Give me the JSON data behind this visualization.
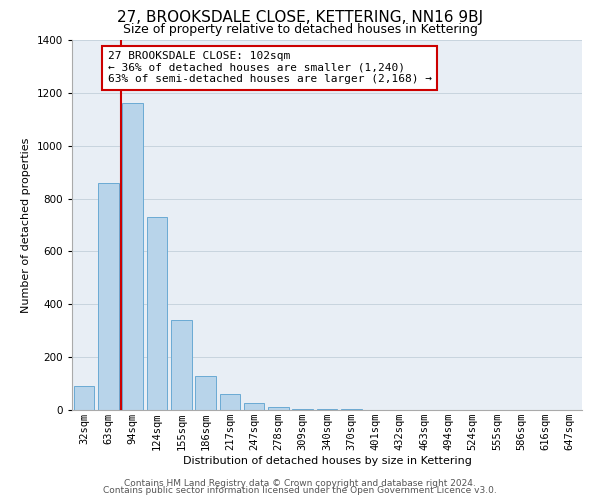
{
  "title": "27, BROOKSDALE CLOSE, KETTERING, NN16 9BJ",
  "subtitle": "Size of property relative to detached houses in Kettering",
  "xlabel": "Distribution of detached houses by size in Kettering",
  "ylabel": "Number of detached properties",
  "bar_color": "#b8d4ea",
  "bar_edge_color": "#6aaad4",
  "background_color": "#e8eef5",
  "categories": [
    "32sqm",
    "63sqm",
    "94sqm",
    "124sqm",
    "155sqm",
    "186sqm",
    "217sqm",
    "247sqm",
    "278sqm",
    "309sqm",
    "340sqm",
    "370sqm",
    "401sqm",
    "432sqm",
    "463sqm",
    "494sqm",
    "524sqm",
    "555sqm",
    "586sqm",
    "616sqm",
    "647sqm"
  ],
  "values": [
    90,
    860,
    1160,
    730,
    340,
    130,
    60,
    25,
    10,
    5,
    3,
    2,
    1,
    1,
    0,
    0,
    0,
    0,
    0,
    0,
    0
  ],
  "ylim": [
    0,
    1400
  ],
  "yticks": [
    0,
    200,
    400,
    600,
    800,
    1000,
    1200,
    1400
  ],
  "vline_pos": 1.5,
  "vline_color": "#cc0000",
  "annotation_box_edge": "#cc0000",
  "annotation_line1": "27 BROOKSDALE CLOSE: 102sqm",
  "annotation_line2": "← 36% of detached houses are smaller (1,240)",
  "annotation_line3": "63% of semi-detached houses are larger (2,168) →",
  "footer1": "Contains HM Land Registry data © Crown copyright and database right 2024.",
  "footer2": "Contains public sector information licensed under the Open Government Licence v3.0.",
  "grid_color": "#c8d4de",
  "title_fontsize": 11,
  "subtitle_fontsize": 9,
  "axis_label_fontsize": 8,
  "tick_fontsize": 7.5,
  "annotation_fontsize": 8,
  "footer_fontsize": 6.5
}
